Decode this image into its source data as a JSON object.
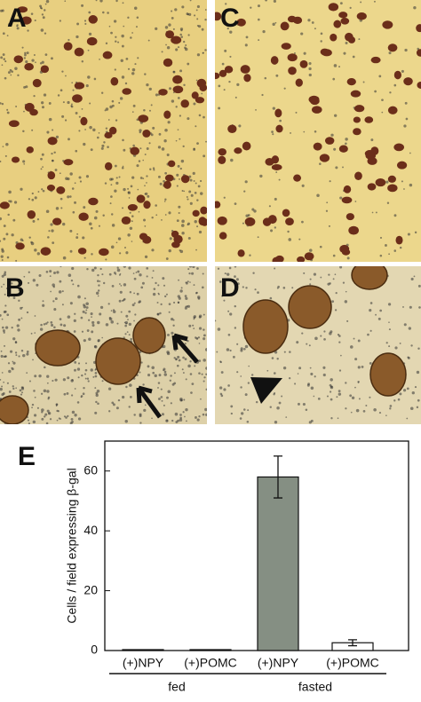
{
  "panels": [
    {
      "label": "A"
    },
    {
      "label": "C"
    },
    {
      "label": "B"
    },
    {
      "label": "D"
    }
  ],
  "chart_data": {
    "type": "bar",
    "figure_label": "E",
    "ylabel": "Cells / field expressing β-gal",
    "categories": [
      "(+)NPY",
      "(+)POMC",
      "(+)NPY",
      "(+)POMC"
    ],
    "group_labels": [
      "fed",
      "fasted"
    ],
    "values": [
      0.3,
      0.3,
      58,
      2.6
    ],
    "errors": [
      null,
      null,
      7,
      1
    ],
    "colors": [
      "#222222",
      "#222222",
      "#858f83",
      "#ffffff"
    ],
    "ylim": [
      0,
      70
    ],
    "yticks": [
      0,
      20,
      40,
      60
    ]
  }
}
